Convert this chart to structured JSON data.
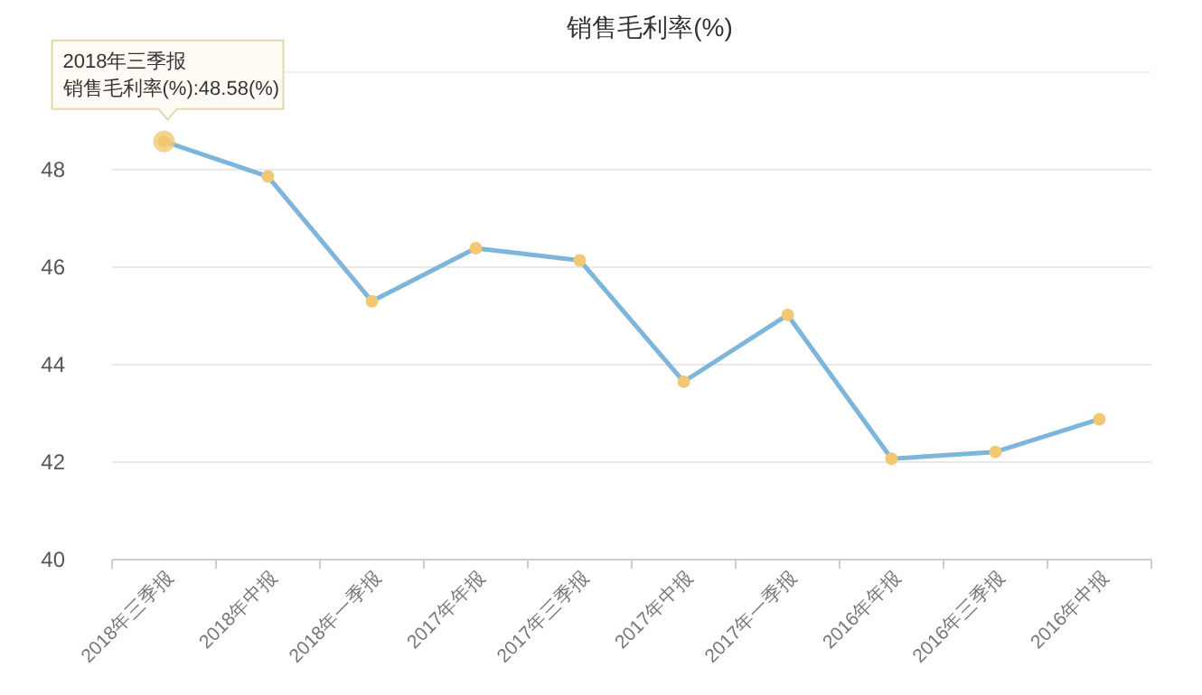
{
  "chart_data": {
    "type": "line",
    "title": "销售毛利率(%)",
    "categories": [
      "2018年三季报",
      "2018年中报",
      "2018年一季报",
      "2017年年报",
      "2017年三季报",
      "2017年中报",
      "2017年一季报",
      "2016年年报",
      "2016年三季报",
      "2016年中报"
    ],
    "series": [
      {
        "color": "#7db5db",
        "colors": [
          "#f3c874",
          "#f3c874",
          "#f3c874",
          "#f3c874",
          "#f3c874",
          "#f3c874",
          "#f3c874",
          "#f3c874",
          "#f3c874",
          "#f3c874"
        ],
        "values": [
          48.58,
          47.86,
          45.3,
          46.39,
          46.14,
          43.65,
          45.02,
          42.07,
          42.21,
          42.88
        ]
      }
    ],
    "ylim": [
      40,
      50
    ],
    "yticks": [
      40,
      42,
      44,
      46,
      48
    ],
    "grid": "y",
    "marker": "circle",
    "line_style": "solid",
    "annotations": [
      "2018年三季报",
      {
        "text": "销售毛利率(%):48.58(%)",
        "x": "2018年三季报",
        "y": 48.58
      }
    ]
  }
}
